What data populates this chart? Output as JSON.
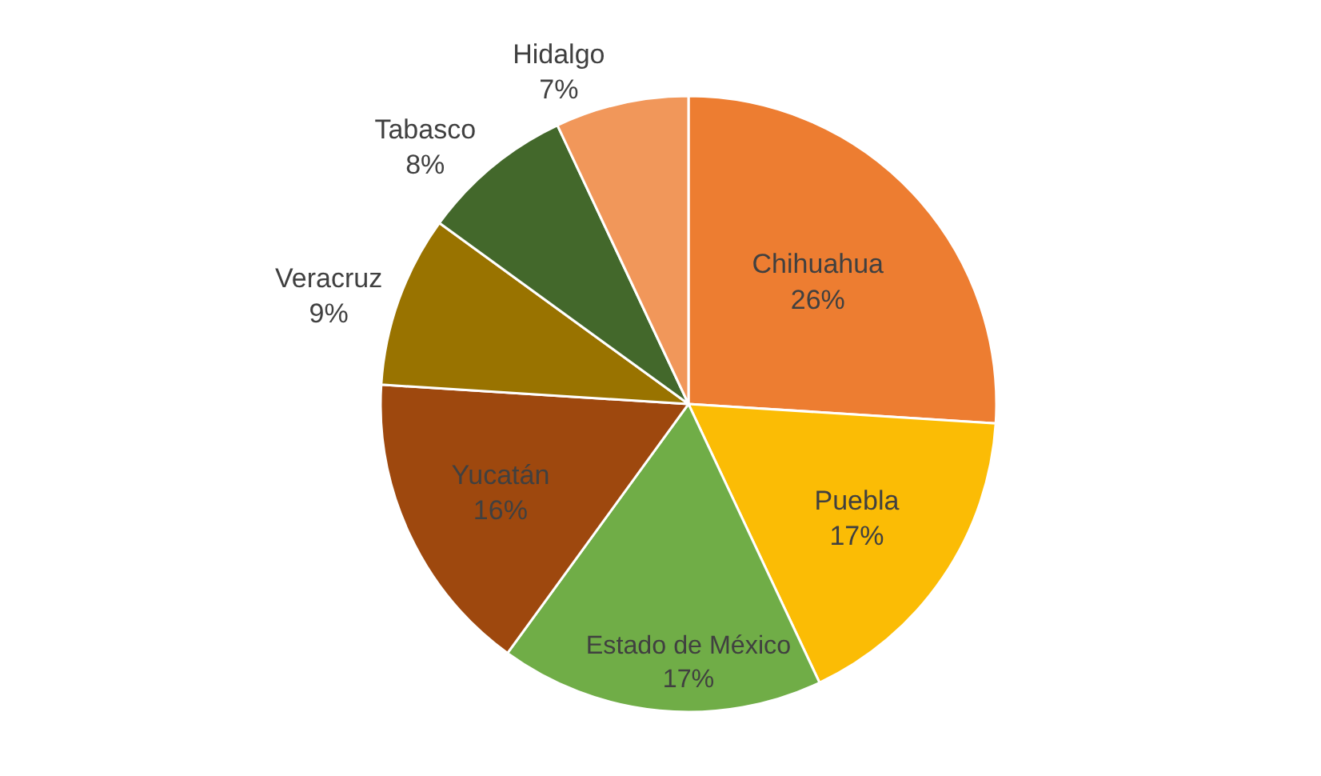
{
  "chart_data": {
    "type": "pie",
    "categories": [
      "Chihuahua",
      "Puebla",
      "Estado de México",
      "Yucatán",
      "Veracruz",
      "Tabasco",
      "Hidalgo"
    ],
    "values": [
      26,
      17,
      17,
      16,
      9,
      8,
      7
    ],
    "colors": [
      "#ed7d31",
      "#fbbc05",
      "#70ad47",
      "#9e480e",
      "#997300",
      "#43682b",
      "#f1975a"
    ],
    "value_labels": [
      "26%",
      "17%",
      "17%",
      "16%",
      "9%",
      "8%",
      "7%"
    ],
    "legend": false
  }
}
